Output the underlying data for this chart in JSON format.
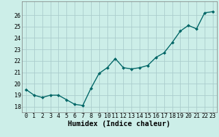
{
  "x": [
    0,
    1,
    2,
    3,
    4,
    5,
    6,
    7,
    8,
    9,
    10,
    11,
    12,
    13,
    14,
    15,
    16,
    17,
    18,
    19,
    20,
    21,
    22,
    23
  ],
  "y": [
    19.5,
    19.0,
    18.8,
    19.0,
    19.0,
    18.6,
    18.2,
    18.1,
    19.6,
    20.9,
    21.4,
    22.2,
    21.4,
    21.3,
    21.4,
    21.6,
    22.3,
    22.7,
    23.6,
    24.6,
    25.1,
    24.8,
    26.2,
    26.3
  ],
  "line_color": "#006666",
  "marker": "D",
  "marker_size": 2.0,
  "bg_color": "#cceee8",
  "grid_color": "#aacccc",
  "xlabel": "Humidex (Indice chaleur)",
  "ylim": [
    17.5,
    27.2
  ],
  "xlim": [
    -0.5,
    23.5
  ],
  "yticks": [
    18,
    19,
    20,
    21,
    22,
    23,
    24,
    25,
    26
  ],
  "xticks": [
    0,
    1,
    2,
    3,
    4,
    5,
    6,
    7,
    8,
    9,
    10,
    11,
    12,
    13,
    14,
    15,
    16,
    17,
    18,
    19,
    20,
    21,
    22,
    23
  ],
  "label_fontsize": 7.5,
  "tick_fontsize": 6.0,
  "line_width": 1.0
}
